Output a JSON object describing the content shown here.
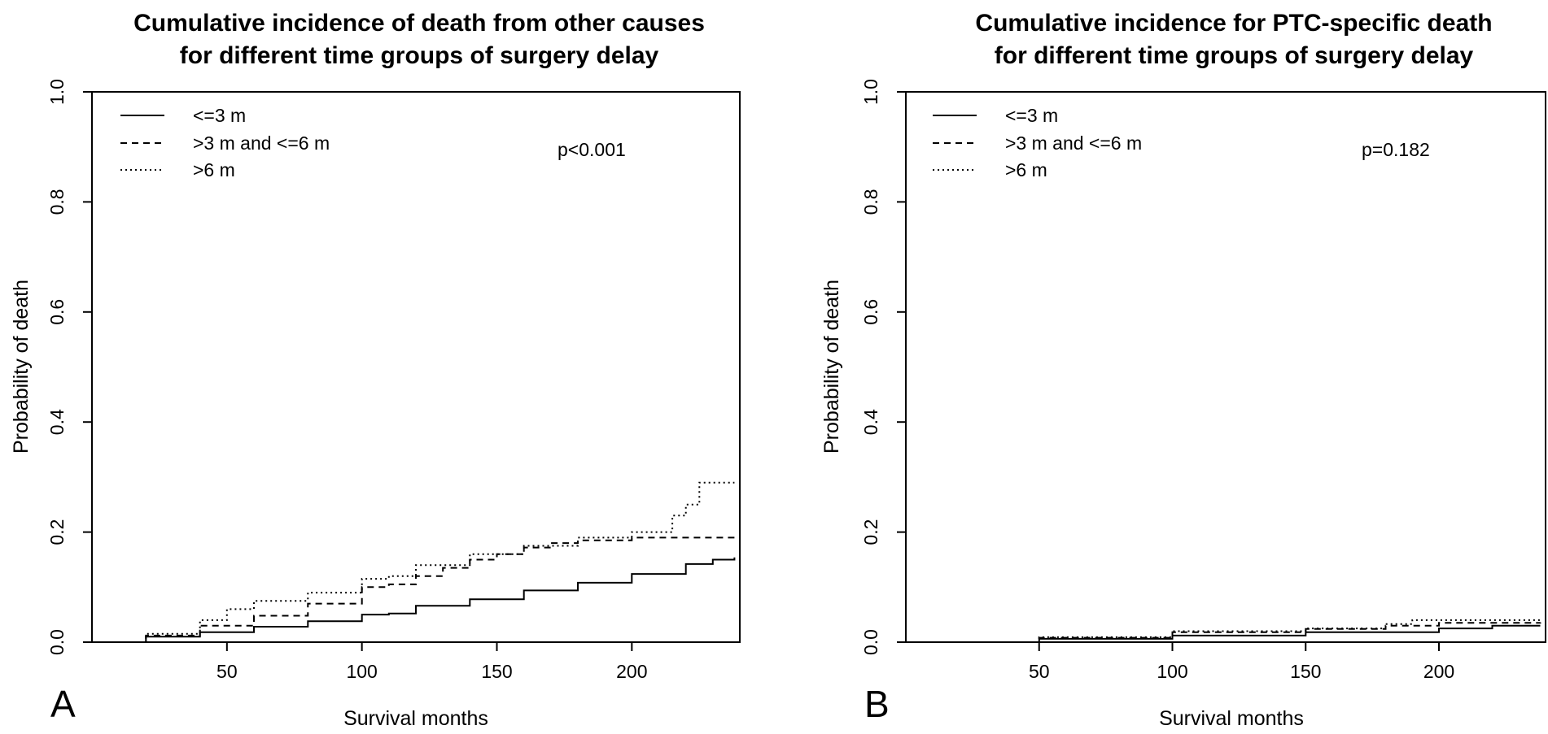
{
  "chart_data": [
    {
      "type": "line",
      "panel_letter": "A",
      "title_line1": "Cumulative incidence of death from other causes",
      "title_line2": "for different time groups of surgery delay",
      "xlabel": "Survival months",
      "ylabel": "Probability of death",
      "xlim": [
        0,
        240
      ],
      "ylim": [
        0,
        1.0
      ],
      "x_ticks": [
        50,
        100,
        150,
        200
      ],
      "y_ticks": [
        "0.0",
        "0.2",
        "0.4",
        "0.6",
        "0.8",
        "1.0"
      ],
      "p_value": "p<0.001",
      "legend_position": "top-left",
      "series": [
        {
          "name": "<=3 m",
          "style": "solid",
          "x": [
            0,
            20,
            40,
            60,
            80,
            100,
            110,
            120,
            140,
            160,
            180,
            200,
            210,
            220,
            230,
            238
          ],
          "y": [
            0,
            0.01,
            0.018,
            0.028,
            0.038,
            0.05,
            0.052,
            0.066,
            0.078,
            0.094,
            0.108,
            0.124,
            0.124,
            0.142,
            0.15,
            0.154
          ]
        },
        {
          "name": ">3 m and <=6 m",
          "style": "dashed",
          "x": [
            0,
            20,
            40,
            60,
            80,
            100,
            110,
            120,
            130,
            140,
            150,
            160,
            170,
            180,
            200,
            238
          ],
          "y": [
            0,
            0.012,
            0.03,
            0.048,
            0.07,
            0.1,
            0.105,
            0.12,
            0.135,
            0.15,
            0.16,
            0.172,
            0.18,
            0.185,
            0.19,
            0.19
          ]
        },
        {
          "name": ">6 m",
          "style": "dotted",
          "x": [
            0,
            20,
            40,
            50,
            60,
            80,
            100,
            110,
            120,
            140,
            160,
            180,
            200,
            210,
            215,
            220,
            225,
            238
          ],
          "y": [
            0,
            0.015,
            0.04,
            0.06,
            0.075,
            0.09,
            0.115,
            0.12,
            0.14,
            0.16,
            0.175,
            0.19,
            0.2,
            0.2,
            0.23,
            0.25,
            0.29,
            0.29
          ]
        }
      ]
    },
    {
      "type": "line",
      "panel_letter": "B",
      "title_line1": "Cumulative incidence for PTC-specific death",
      "title_line2": "for different time groups of surgery delay",
      "xlabel": "Survival months",
      "ylabel": "Probability of death",
      "xlim": [
        0,
        240
      ],
      "ylim": [
        0,
        1.0
      ],
      "x_ticks": [
        50,
        100,
        150,
        200
      ],
      "y_ticks": [
        "0.0",
        "0.2",
        "0.4",
        "0.6",
        "0.8",
        "1.0"
      ],
      "p_value": "p=0.182",
      "legend_position": "top-left",
      "series": [
        {
          "name": "<=3 m",
          "style": "solid",
          "x": [
            0,
            50,
            100,
            150,
            200,
            220,
            238
          ],
          "y": [
            0,
            0.006,
            0.012,
            0.018,
            0.025,
            0.03,
            0.03
          ]
        },
        {
          "name": ">3 m and <=6 m",
          "style": "dashed",
          "x": [
            0,
            50,
            100,
            150,
            180,
            200,
            238
          ],
          "y": [
            0,
            0.008,
            0.018,
            0.024,
            0.03,
            0.035,
            0.036
          ]
        },
        {
          "name": ">6 m",
          "style": "dotted",
          "x": [
            0,
            50,
            100,
            150,
            180,
            190,
            238
          ],
          "y": [
            0,
            0.009,
            0.02,
            0.025,
            0.033,
            0.04,
            0.04
          ]
        }
      ]
    }
  ],
  "colors": {
    "line": "#000000",
    "background": "#ffffff"
  }
}
